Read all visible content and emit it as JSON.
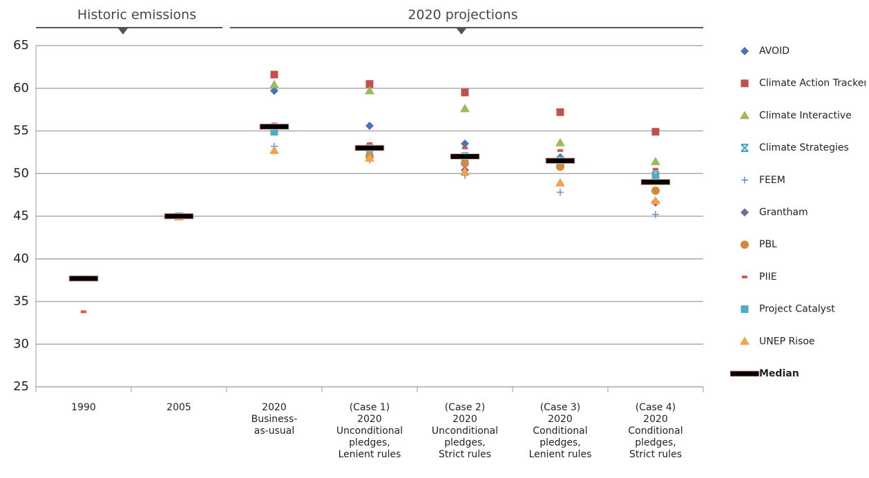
{
  "chart_data": {
    "type": "scatter",
    "annotations": [
      "Historic emissions",
      "2020 projections"
    ],
    "categories": [
      [
        "1990"
      ],
      [
        "2005"
      ],
      [
        "2020",
        "Business-",
        "as-usual"
      ],
      [
        "(Case 1)",
        "2020",
        "Unconditional",
        "pledges,",
        "Lenient rules"
      ],
      [
        "(Case 2)",
        "2020",
        "Unconditional",
        "pledges,",
        "Strict rules"
      ],
      [
        "(Case 3)",
        "2020",
        "Conditional",
        "pledges,",
        "Lenient rules"
      ],
      [
        "(Case 4)",
        "2020",
        "Conditional",
        "pledges,",
        "Strict rules"
      ]
    ],
    "ylim": [
      25,
      65
    ],
    "yticks": [
      25,
      30,
      35,
      40,
      45,
      50,
      55,
      60,
      65
    ],
    "grid": true,
    "series": [
      {
        "name": "AVOID",
        "color": "#4a72b8",
        "marker": "diamond",
        "values": [
          null,
          null,
          59.7,
          55.6,
          53.5,
          51.9,
          46.7
        ]
      },
      {
        "name": "Climate Action Tracker",
        "color": "#c0504d",
        "marker": "square",
        "values": [
          null,
          null,
          61.6,
          60.5,
          59.5,
          57.2,
          54.9
        ]
      },
      {
        "name": "Climate Interactive",
        "color": "#9bbb59",
        "marker": "triangle",
        "values": [
          null,
          null,
          60.4,
          59.7,
          57.6,
          53.6,
          51.4
        ]
      },
      {
        "name": "Climate Strategies",
        "color": "#3aa3c4",
        "marker": "x",
        "values": [
          null,
          null,
          55.0,
          52.7,
          52.0,
          51.5,
          49.8
        ]
      },
      {
        "name": "FEEM",
        "color": "#5b8fd6",
        "marker": "plus",
        "values": [
          null,
          null,
          53.2,
          51.6,
          49.8,
          47.8,
          45.2
        ]
      },
      {
        "name": "Grantham",
        "color": "#8064a2",
        "marker": "diamond",
        "values": [
          null,
          null,
          null,
          52.0,
          50.4,
          51.0,
          46.6
        ]
      },
      {
        "name": "PBL",
        "color": "#d08a3a",
        "marker": "circle",
        "values": [
          null,
          null,
          null,
          52.0,
          51.2,
          50.8,
          48.0
        ]
      },
      {
        "name": "PIIE",
        "color": "#e0524f",
        "marker": "dash",
        "values": [
          33.8,
          null,
          55.8,
          53.5,
          53.0,
          52.7,
          50.5
        ]
      },
      {
        "name": "Project Catalyst",
        "color": "#4bacc6",
        "marker": "square",
        "values": [
          null,
          45.0,
          54.9,
          53.0,
          52.0,
          51.6,
          49.5
        ]
      },
      {
        "name": "UNEP Risoe",
        "color": "#f7a14b",
        "marker": "triangle",
        "values": [
          null,
          44.9,
          52.7,
          51.8,
          50.2,
          48.9,
          46.8
        ]
      },
      {
        "name": "Median",
        "color": "#000000",
        "marker": "bar",
        "values": [
          37.7,
          45.0,
          55.5,
          53.0,
          52.0,
          51.5,
          49.0
        ]
      }
    ]
  }
}
